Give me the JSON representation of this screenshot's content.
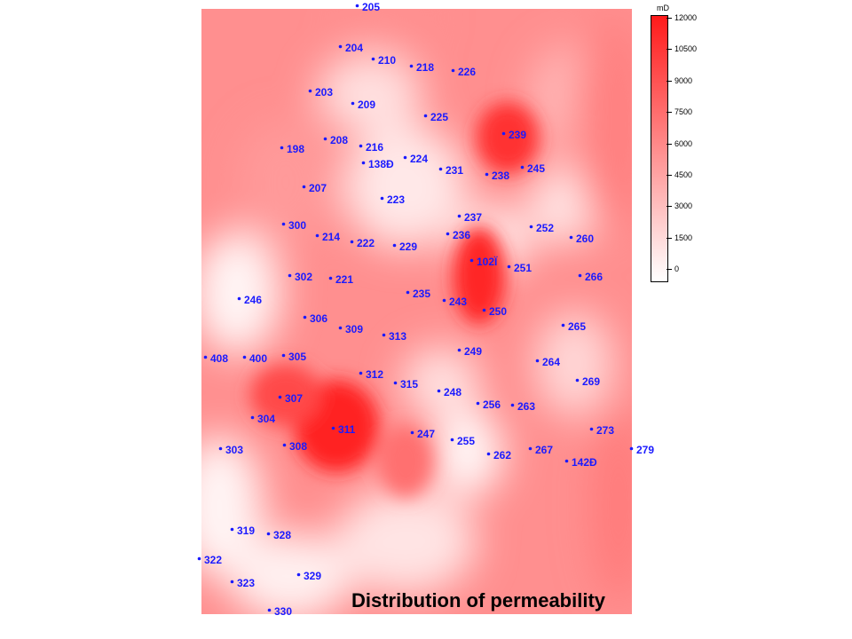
{
  "title": "Distribution of permeability",
  "colors": {
    "low": "#ffffff",
    "high": "#ff1a1a",
    "label": "#1a1aff"
  },
  "colorbar": {
    "unit": "mD",
    "ticks": [
      "12000",
      "10500",
      "9000",
      "7500",
      "6000",
      "4500",
      "3000",
      "1500",
      "0"
    ],
    "range": [
      0,
      12000
    ]
  },
  "wells": [
    {
      "id": "205"
    },
    {
      "id": "204"
    },
    {
      "id": "210"
    },
    {
      "id": "218"
    },
    {
      "id": "226"
    },
    {
      "id": "203"
    },
    {
      "id": "209"
    },
    {
      "id": "225"
    },
    {
      "id": "239"
    },
    {
      "id": "198"
    },
    {
      "id": "208"
    },
    {
      "id": "216"
    },
    {
      "id": "138Đ"
    },
    {
      "id": "224"
    },
    {
      "id": "231"
    },
    {
      "id": "238"
    },
    {
      "id": "245"
    },
    {
      "id": "207"
    },
    {
      "id": "223"
    },
    {
      "id": "237"
    },
    {
      "id": "300"
    },
    {
      "id": "214"
    },
    {
      "id": "222"
    },
    {
      "id": "229"
    },
    {
      "id": "236"
    },
    {
      "id": "252"
    },
    {
      "id": "260"
    },
    {
      "id": "102Ï"
    },
    {
      "id": "251"
    },
    {
      "id": "302"
    },
    {
      "id": "221"
    },
    {
      "id": "266"
    },
    {
      "id": "246"
    },
    {
      "id": "235"
    },
    {
      "id": "243"
    },
    {
      "id": "250"
    },
    {
      "id": "306"
    },
    {
      "id": "309"
    },
    {
      "id": "313"
    },
    {
      "id": "265"
    },
    {
      "id": "249"
    },
    {
      "id": "408"
    },
    {
      "id": "400"
    },
    {
      "id": "305"
    },
    {
      "id": "264"
    },
    {
      "id": "312"
    },
    {
      "id": "315"
    },
    {
      "id": "269"
    },
    {
      "id": "307"
    },
    {
      "id": "248"
    },
    {
      "id": "256"
    },
    {
      "id": "263"
    },
    {
      "id": "304"
    },
    {
      "id": "311"
    },
    {
      "id": "247"
    },
    {
      "id": "273"
    },
    {
      "id": "255"
    },
    {
      "id": "303"
    },
    {
      "id": "308"
    },
    {
      "id": "262"
    },
    {
      "id": "267"
    },
    {
      "id": "142Đ"
    },
    {
      "id": "279"
    },
    {
      "id": "319"
    },
    {
      "id": "328"
    },
    {
      "id": "322"
    },
    {
      "id": "329"
    },
    {
      "id": "323"
    },
    {
      "id": "330"
    }
  ]
}
